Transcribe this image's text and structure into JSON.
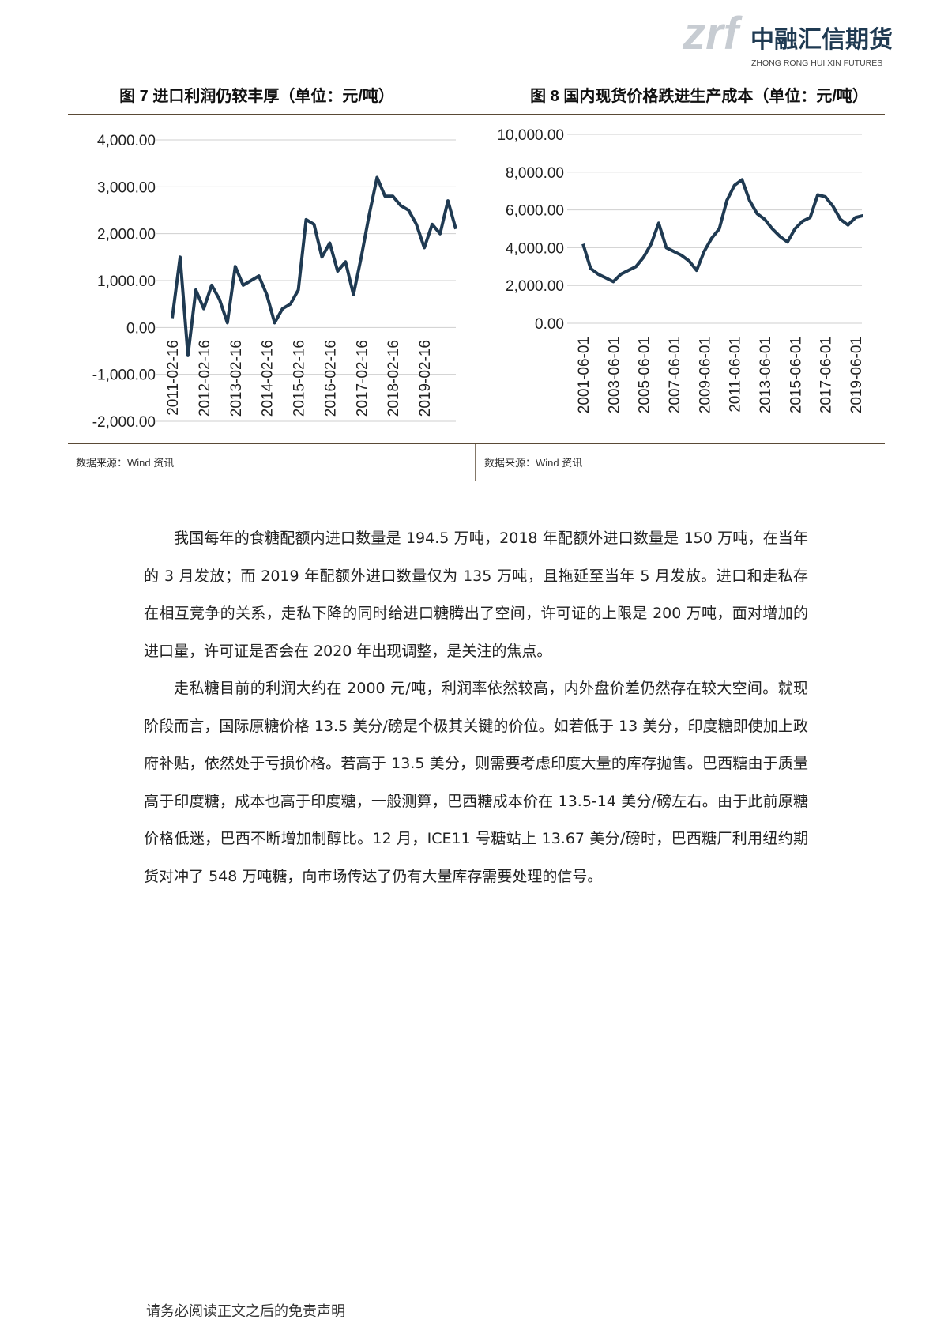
{
  "header": {
    "logo_mark": "zrf",
    "company": "中融汇信期货",
    "company_en": "ZHONG RONG HUI XIN FUTURES"
  },
  "chart_data": [
    {
      "type": "line",
      "title": "图 7 进口利润仍较丰厚（单位：元/吨）",
      "source": "数据来源：Wind 资讯",
      "color": "#1f3a52",
      "grid": true,
      "categories": [
        "2011-02-16",
        null,
        null,
        null,
        "2012-02-16",
        null,
        null,
        null,
        "2013-02-16",
        null,
        null,
        null,
        "2014-02-16",
        null,
        null,
        null,
        "2015-02-16",
        null,
        null,
        null,
        "2016-02-16",
        null,
        null,
        null,
        "2017-02-16",
        null,
        null,
        null,
        "2018-02-16",
        null,
        null,
        null,
        "2019-02-16",
        null,
        null,
        null,
        null
      ],
      "values": [
        200,
        1500,
        -600,
        800,
        400,
        900,
        600,
        100,
        1300,
        900,
        1000,
        1100,
        700,
        100,
        400,
        500,
        800,
        2300,
        2200,
        1500,
        1800,
        1200,
        1400,
        700,
        1500,
        2400,
        3200,
        2800,
        2800,
        2600,
        2500,
        2200,
        1700,
        2200,
        2000,
        2700,
        2100
      ],
      "ylim": [
        -2000,
        4000
      ],
      "yticks": [
        {
          "value": -2000,
          "label": "-2,000.00"
        },
        {
          "value": -1000,
          "label": "-1,000.00"
        },
        {
          "value": 0,
          "label": "0.00"
        },
        {
          "value": 1000,
          "label": "1,000.00"
        },
        {
          "value": 2000,
          "label": "2,000.00"
        },
        {
          "value": 3000,
          "label": "3,000.00"
        },
        {
          "value": 4000,
          "label": "4,000.00"
        }
      ]
    },
    {
      "type": "line",
      "title": "图 8 国内现货价格跌进生产成本（单位：元/吨）",
      "source": "数据来源：Wind 资讯",
      "color": "#1f3a52",
      "grid": true,
      "categories": [
        "2001-06-01",
        null,
        null,
        null,
        "2003-06-01",
        null,
        null,
        null,
        "2005-06-01",
        null,
        null,
        null,
        "2007-06-01",
        null,
        null,
        null,
        "2009-06-01",
        null,
        null,
        null,
        "2011-06-01",
        null,
        null,
        null,
        "2013-06-01",
        null,
        null,
        null,
        "2015-06-01",
        null,
        null,
        null,
        "2017-06-01",
        null,
        null,
        null,
        "2019-06-01",
        null
      ],
      "values": [
        4200,
        2900,
        2600,
        2400,
        2200,
        2600,
        2800,
        3000,
        3500,
        4200,
        5300,
        4000,
        3800,
        3600,
        3300,
        2800,
        3800,
        4500,
        5000,
        6500,
        7300,
        7600,
        6500,
        5800,
        5500,
        5000,
        4600,
        4300,
        5000,
        5400,
        5600,
        6800,
        6700,
        6200,
        5500,
        5200,
        5600,
        5700
      ],
      "ylim": [
        0,
        10000
      ],
      "yticks": [
        {
          "value": 0,
          "label": "0.00"
        },
        {
          "value": 2000,
          "label": "2,000.00"
        },
        {
          "value": 4000,
          "label": "4,000.00"
        },
        {
          "value": 6000,
          "label": "6,000.00"
        },
        {
          "value": 8000,
          "label": "8,000.00"
        },
        {
          "value": 10000,
          "label": "10,000.00"
        }
      ]
    }
  ],
  "body": {
    "paragraphs": [
      "我国每年的食糖配额内进口数量是 194.5 万吨，2018 年配额外进口数量是 150 万吨，在当年的 3 月发放；而 2019 年配额外进口数量仅为 135 万吨，且拖延至当年 5 月发放。进口和走私存在相互竞争的关系，走私下降的同时给进口糖腾出了空间，许可证的上限是 200 万吨，面对增加的进口量，许可证是否会在 2020 年出现调整，是关注的焦点。",
      "走私糖目前的利润大约在 2000 元/吨，利润率依然较高，内外盘价差仍然存在较大空间。就现阶段而言，国际原糖价格 13.5 美分/磅是个极其关键的价位。如若低于 13 美分，印度糖即使加上政府补贴，依然处于亏损价格。若高于 13.5 美分，则需要考虑印度大量的库存抛售。巴西糖由于质量高于印度糖，成本也高于印度糖，一般测算，巴西糖成本价在 13.5-14 美分/磅左右。由于此前原糖价格低迷，巴西不断增加制醇比。12 月，ICE11 号糖站上 13.67 美分/磅时，巴西糖厂利用纽约期货对冲了 548 万吨糖，向市场传达了仍有大量库存需要处理的信号。"
    ]
  },
  "footer": {
    "disclaimer": "请务必阅读正文之后的免责声明"
  }
}
